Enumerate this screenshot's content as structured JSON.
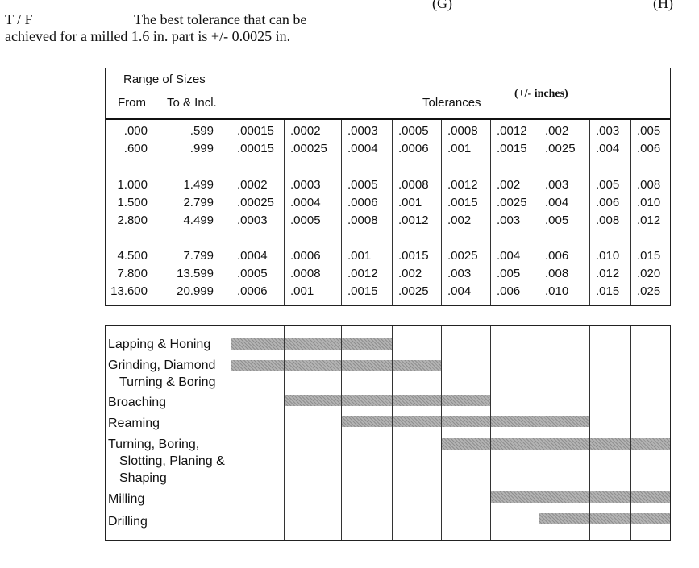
{
  "top_fragments": {
    "left": "(G)",
    "right": "(H)"
  },
  "question": {
    "tf": "T  /  F",
    "line1": "The best tolerance that can be",
    "line2": "achieved for a milled 1.6 in. part is +/- 0.0025 in."
  },
  "tolerance_table": {
    "range_of_sizes": "Range of Sizes",
    "from_label": "From",
    "to_label": "To & Incl.",
    "tolerances_label": "Tolerances",
    "units_label": "(+/- inches)",
    "rows": [
      {
        "from": ".000",
        "to": ".599",
        "values": [
          ".00015",
          ".0002",
          ".0003",
          ".0005",
          ".0008",
          ".0012",
          ".002",
          ".003",
          ".005"
        ]
      },
      {
        "from": ".600",
        "to": ".999",
        "values": [
          ".00015",
          ".00025",
          ".0004",
          ".0006",
          ".001",
          ".0015",
          ".0025",
          ".004",
          ".006"
        ]
      },
      {
        "from": "1.000",
        "to": "1.499",
        "values": [
          ".0002",
          ".0003",
          ".0005",
          ".0008",
          ".0012",
          ".002",
          ".003",
          ".005",
          ".008"
        ]
      },
      {
        "from": "1.500",
        "to": "2.799",
        "values": [
          ".00025",
          ".0004",
          ".0006",
          ".001",
          ".0015",
          ".0025",
          ".004",
          ".006",
          ".010"
        ]
      },
      {
        "from": "2.800",
        "to": "4.499",
        "values": [
          ".0003",
          ".0005",
          ".0008",
          ".0012",
          ".002",
          ".003",
          ".005",
          ".008",
          ".012"
        ]
      },
      {
        "from": "4.500",
        "to": "7.799",
        "values": [
          ".0004",
          ".0006",
          ".001",
          ".0015",
          ".0025",
          ".004",
          ".006",
          ".010",
          ".015"
        ]
      },
      {
        "from": "7.800",
        "to": "13.599",
        "values": [
          ".0005",
          ".0008",
          ".0012",
          ".002",
          ".003",
          ".005",
          ".008",
          ".012",
          ".020"
        ]
      },
      {
        "from": "13.600",
        "to": "20.999",
        "values": [
          ".0006",
          ".001",
          ".0015",
          ".0025",
          ".004",
          ".006",
          ".010",
          ".015",
          ".025"
        ]
      }
    ]
  },
  "process_chart": {
    "processes": [
      {
        "label_lines": [
          "Lapping & Honing"
        ],
        "tolerance_columns": [
          1,
          3
        ]
      },
      {
        "label_lines": [
          "Grinding, Diamond",
          "Turning & Boring"
        ],
        "tolerance_columns": [
          1,
          4
        ]
      },
      {
        "label_lines": [
          "Broaching"
        ],
        "tolerance_columns": [
          2,
          5
        ]
      },
      {
        "label_lines": [
          "Reaming"
        ],
        "tolerance_columns": [
          3,
          7
        ]
      },
      {
        "label_lines": [
          "Turning, Boring,",
          "Slotting, Planing &",
          "Shaping"
        ],
        "tolerance_columns": [
          5,
          9
        ]
      },
      {
        "label_lines": [
          "Milling"
        ],
        "tolerance_columns": [
          6,
          9
        ]
      },
      {
        "label_lines": [
          "Drilling"
        ],
        "tolerance_columns": [
          7,
          9
        ]
      }
    ]
  }
}
